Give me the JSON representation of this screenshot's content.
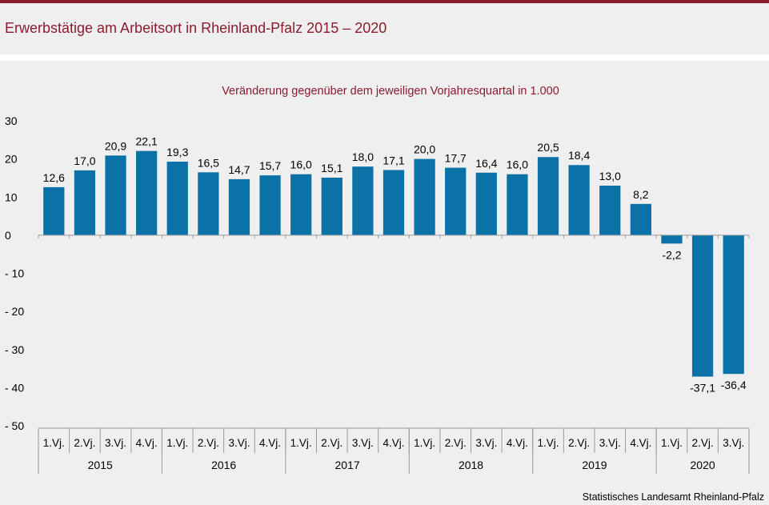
{
  "header": {
    "title": "Erwerbstätige am Arbeitsort in Rheinland-Pfalz 2015 – 2020"
  },
  "footer": {
    "source": "Statistisches Landesamt Rheinland-Pfalz"
  },
  "colors": {
    "bar": "#0b72a8",
    "accent": "#8b1c2e"
  },
  "chart_data": {
    "type": "bar",
    "subtitle": "Veränderung gegenüber dem jeweiligen Vorjahresquartal in 1.000",
    "xlabel": "",
    "ylabel": "",
    "ylim": [
      -50,
      30
    ],
    "yticks": [
      30,
      20,
      10,
      0,
      -10,
      -20,
      -30,
      -40,
      -50
    ],
    "ytick_labels": [
      "30",
      "20",
      "10",
      "0",
      "- 10",
      "- 20",
      "- 30",
      "- 40",
      "- 50"
    ],
    "grid": false,
    "quarter_labels": [
      "1.Vj.",
      "2.Vj.",
      "3.Vj.",
      "4.Vj.",
      "1.Vj.",
      "2.Vj.",
      "3.Vj.",
      "4.Vj.",
      "1.Vj.",
      "2.Vj.",
      "3.Vj.",
      "4.Vj.",
      "1.Vj.",
      "2.Vj.",
      "3.Vj.",
      "4.Vj.",
      "1.Vj.",
      "2.Vj.",
      "3.Vj.",
      "4.Vj.",
      "1.Vj.",
      "2.Vj.",
      "3.Vj."
    ],
    "years": [
      {
        "label": "2015",
        "quarters": 4
      },
      {
        "label": "2016",
        "quarters": 4
      },
      {
        "label": "2017",
        "quarters": 4
      },
      {
        "label": "2018",
        "quarters": 4
      },
      {
        "label": "2019",
        "quarters": 4
      },
      {
        "label": "2020",
        "quarters": 3
      }
    ],
    "values": [
      12.6,
      17.0,
      20.9,
      22.1,
      19.3,
      16.5,
      14.7,
      15.7,
      16.0,
      15.1,
      18.0,
      17.1,
      20.0,
      17.7,
      16.4,
      16.0,
      20.5,
      18.4,
      13.0,
      8.2,
      -2.2,
      -37.1,
      -36.4
    ],
    "value_labels": [
      "12,6",
      "17,0",
      "20,9",
      "22,1",
      "19,3",
      "16,5",
      "14,7",
      "15,7",
      "16,0",
      "15,1",
      "18,0",
      "17,1",
      "20,0",
      "17,7",
      "16,4",
      "16,0",
      "20,5",
      "18,4",
      "13,0",
      "8,2",
      "-2,2",
      "-37,1",
      "-36,4"
    ]
  }
}
